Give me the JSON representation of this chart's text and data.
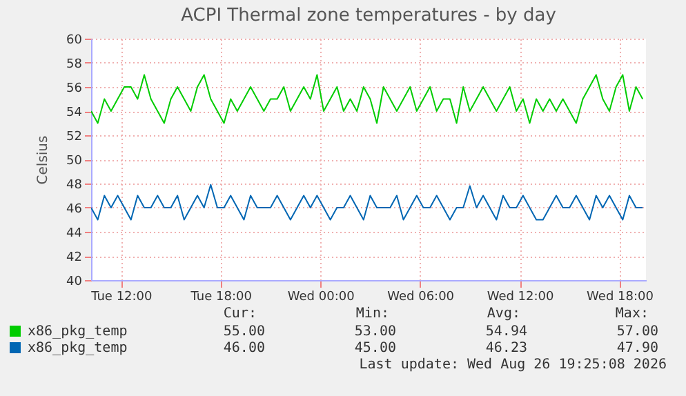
{
  "chart_data": {
    "type": "line",
    "title": "ACPI Thermal zone temperatures - by day",
    "ylabel": "Celsius",
    "x": [
      "2026-08-25T10:12",
      "2026-08-25T10:36",
      "2026-08-25T11:00",
      "2026-08-25T11:24",
      "2026-08-25T11:48",
      "2026-08-25T12:12",
      "2026-08-25T12:36",
      "2026-08-25T13:00",
      "2026-08-25T13:24",
      "2026-08-25T13:48",
      "2026-08-25T14:12",
      "2026-08-25T14:36",
      "2026-08-25T15:00",
      "2026-08-25T15:24",
      "2026-08-25T15:48",
      "2026-08-25T16:12",
      "2026-08-25T16:36",
      "2026-08-25T17:00",
      "2026-08-25T17:24",
      "2026-08-25T17:48",
      "2026-08-25T18:12",
      "2026-08-25T18:36",
      "2026-08-25T19:00",
      "2026-08-25T19:24",
      "2026-08-25T19:48",
      "2026-08-25T20:12",
      "2026-08-25T20:36",
      "2026-08-25T21:00",
      "2026-08-25T21:24",
      "2026-08-25T21:48",
      "2026-08-25T22:12",
      "2026-08-25T22:36",
      "2026-08-25T23:00",
      "2026-08-25T23:24",
      "2026-08-25T23:48",
      "2026-08-26T00:12",
      "2026-08-26T00:36",
      "2026-08-26T01:00",
      "2026-08-26T01:24",
      "2026-08-26T01:48",
      "2026-08-26T02:12",
      "2026-08-26T02:36",
      "2026-08-26T03:00",
      "2026-08-26T03:24",
      "2026-08-26T03:48",
      "2026-08-26T04:12",
      "2026-08-26T04:36",
      "2026-08-26T05:00",
      "2026-08-26T05:24",
      "2026-08-26T05:48",
      "2026-08-26T06:12",
      "2026-08-26T06:36",
      "2026-08-26T07:00",
      "2026-08-26T07:24",
      "2026-08-26T07:48",
      "2026-08-26T08:12",
      "2026-08-26T08:36",
      "2026-08-26T09:00",
      "2026-08-26T09:24",
      "2026-08-26T09:48",
      "2026-08-26T10:12",
      "2026-08-26T10:36",
      "2026-08-26T11:00",
      "2026-08-26T11:24",
      "2026-08-26T11:48",
      "2026-08-26T12:12",
      "2026-08-26T12:36",
      "2026-08-26T13:00",
      "2026-08-26T13:24",
      "2026-08-26T13:48",
      "2026-08-26T14:12",
      "2026-08-26T14:36",
      "2026-08-26T15:00",
      "2026-08-26T15:24",
      "2026-08-26T15:48",
      "2026-08-26T16:12",
      "2026-08-26T16:36",
      "2026-08-26T17:00",
      "2026-08-26T17:24",
      "2026-08-26T17:48",
      "2026-08-26T18:12",
      "2026-08-26T18:36",
      "2026-08-26T19:00",
      "2026-08-26T19:24"
    ],
    "series": [
      {
        "name": "x86_pkg_temp",
        "color": "#00cc00",
        "values": [
          54,
          53,
          55,
          54,
          55,
          56,
          56,
          55,
          57,
          55,
          54,
          53,
          55,
          56,
          55,
          54,
          56,
          57,
          55,
          54,
          53,
          55,
          54,
          55,
          56,
          55,
          54,
          55,
          55,
          56,
          54,
          55,
          56,
          55,
          57,
          54,
          55,
          56,
          54,
          55,
          54,
          56,
          55,
          53,
          56,
          55,
          54,
          55,
          56,
          54,
          55,
          56,
          54,
          55,
          55,
          53,
          56,
          54,
          55,
          56,
          55,
          54,
          55,
          56,
          54,
          55,
          53,
          55,
          54,
          55,
          54,
          55,
          54,
          53,
          55,
          56,
          57,
          55,
          54,
          56,
          57,
          54,
          56,
          55
        ]
      },
      {
        "name": "x86_pkg_temp",
        "color": "#0066b3",
        "values": [
          46,
          45,
          47,
          46,
          47,
          46,
          45,
          47,
          46,
          46,
          47,
          46,
          46,
          47,
          45,
          46,
          47,
          46,
          47.9,
          46,
          46,
          47,
          46,
          45,
          47,
          46,
          46,
          46,
          47,
          46,
          45,
          46,
          47,
          46,
          47,
          46,
          45,
          46,
          46,
          47,
          46,
          45,
          47,
          46,
          46,
          46,
          47,
          45,
          46,
          47,
          46,
          46,
          47,
          46,
          45,
          46,
          46,
          47.8,
          46,
          47,
          46,
          45,
          47,
          46,
          46,
          47,
          46,
          45,
          45,
          46,
          47,
          46,
          46,
          47,
          46,
          45,
          47,
          46,
          47,
          46,
          45,
          47,
          46,
          46
        ]
      }
    ],
    "xlim": [
      "2026-08-25T10:12",
      "2026-08-26T19:36"
    ],
    "xticks": [
      {
        "value": "2026-08-25T12:00",
        "label": "Tue 12:00"
      },
      {
        "value": "2026-08-25T18:00",
        "label": "Tue 18:00"
      },
      {
        "value": "2026-08-26T00:00",
        "label": "Wed 00:00"
      },
      {
        "value": "2026-08-26T06:00",
        "label": "Wed 06:00"
      },
      {
        "value": "2026-08-26T12:00",
        "label": "Wed 12:00"
      },
      {
        "value": "2026-08-26T18:00",
        "label": "Wed 18:00"
      }
    ],
    "ylim": [
      40,
      60
    ],
    "yticks": [
      40,
      42,
      44,
      46,
      48,
      50,
      52,
      54,
      56,
      58,
      60
    ],
    "grid": true,
    "legend": "bottom left",
    "annotations": [
      "Cur:",
      "Min:",
      "Avg:",
      "Max:",
      "55.00",
      "53.00",
      "54.94",
      "57.00",
      "46.00",
      "45.00",
      "46.23",
      "47.90",
      "Last update: Wed Aug 26 19:25:08 2026"
    ]
  }
}
